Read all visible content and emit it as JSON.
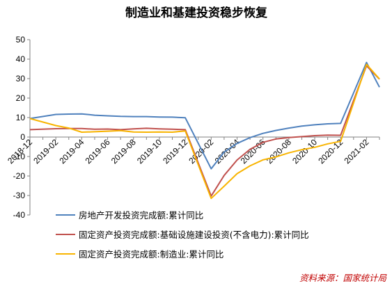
{
  "chart_data": {
    "type": "line",
    "title": "制造业和基建投资稳步恢复",
    "source_note": "资料来源：国家统计局",
    "ylim": [
      -40,
      50
    ],
    "yticks": [
      -40,
      -30,
      -20,
      -10,
      0,
      10,
      20,
      30,
      40,
      50
    ],
    "grid": false,
    "legend_position": "bottom",
    "x": [
      "2018-12",
      "2019-01",
      "2019-02",
      "2019-03",
      "2019-04",
      "2019-05",
      "2019-06",
      "2019-07",
      "2019-08",
      "2019-09",
      "2019-10",
      "2019-11",
      "2019-12",
      "2020-01",
      "2020-02",
      "2020-03",
      "2020-04",
      "2020-05",
      "2020-06",
      "2020-07",
      "2020-08",
      "2020-09",
      "2020-10",
      "2020-11",
      "2020-12",
      "2021-01",
      "2021-02",
      "2021-03"
    ],
    "xtick_labels": [
      "2018-12",
      "2019-02",
      "2019-04",
      "2019-06",
      "2019-08",
      "2019-10",
      "2019-12",
      "2020-02",
      "2020-04",
      "2020-06",
      "2020-08",
      "2020-10",
      "2020-12",
      "2021-02"
    ],
    "series": [
      {
        "name": "房地产开发投资完成额:累计同比",
        "color": "#4f81bd",
        "values": [
          9.5,
          null,
          11.6,
          11.8,
          11.9,
          11.2,
          10.9,
          10.6,
          10.5,
          10.5,
          10.3,
          10.2,
          9.9,
          null,
          -16.3,
          -7.7,
          -3.3,
          -0.3,
          1.9,
          3.4,
          4.6,
          5.6,
          6.3,
          6.8,
          7.0,
          null,
          38.3,
          25.6
        ]
      },
      {
        "name": "固定资产投资完成额:基础设施建设投资(不含电力):累计同比",
        "color": "#c0504d",
        "values": [
          3.8,
          null,
          4.3,
          4.4,
          4.4,
          4.0,
          4.1,
          3.8,
          4.2,
          4.5,
          4.2,
          4.0,
          3.8,
          null,
          -30.3,
          -19.7,
          -11.8,
          -6.3,
          -2.7,
          -1.0,
          -0.3,
          0.2,
          0.7,
          1.0,
          0.9,
          null,
          36.6,
          29.7
        ]
      },
      {
        "name": "固定资产投资完成额:制造业:累计同比",
        "color": "#f8b400",
        "values": [
          9.5,
          null,
          5.9,
          4.6,
          2.5,
          2.7,
          3.0,
          3.3,
          2.6,
          2.5,
          2.6,
          2.5,
          3.1,
          null,
          -31.5,
          -25.2,
          -18.8,
          -14.8,
          -11.7,
          -10.2,
          -8.1,
          -6.5,
          -5.3,
          -3.5,
          -2.2,
          null,
          37.3,
          29.8
        ]
      }
    ]
  }
}
